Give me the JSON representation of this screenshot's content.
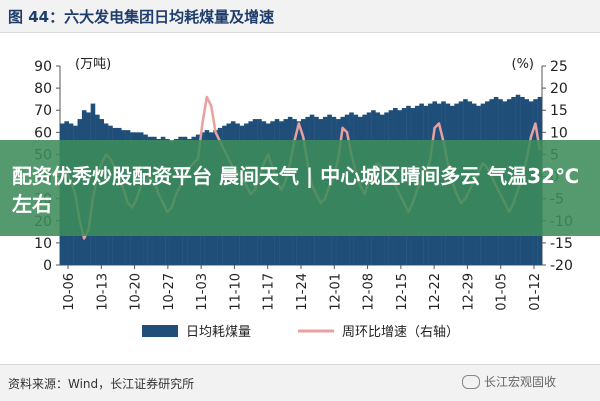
{
  "header": {
    "title": "图 44：六大发电集团日均耗煤量及增速"
  },
  "banner": {
    "text": "配资优秀炒股配资平台 晨间天气 | 中心城区晴间多云 气温32℃左右"
  },
  "footer": {
    "source": "资料来源：Wind，长江证券研究所",
    "watermark": "长江宏观固收"
  },
  "colors": {
    "bar": "#1f4e79",
    "line": "#e8a0a0",
    "title": "#1f3d6b"
  },
  "chart_data": {
    "type": "bar+line",
    "left_axis_unit": "(万吨)",
    "right_axis_unit": "(%)",
    "ylim_left": [
      0,
      90
    ],
    "left_ticks": [
      0,
      10,
      20,
      30,
      40,
      50,
      60,
      70,
      80,
      90
    ],
    "ylim_right": [
      -20,
      25
    ],
    "right_ticks": [
      -20,
      -15,
      -10,
      -5,
      0,
      5,
      10,
      15,
      20,
      25
    ],
    "x_tick_labels": [
      "10-06",
      "10-13",
      "10-20",
      "10-27",
      "11-03",
      "11-10",
      "11-17",
      "11-24",
      "12-01",
      "12-08",
      "12-15",
      "12-22",
      "12-29",
      "01-05",
      "01-12"
    ],
    "series": [
      {
        "name": "日均耗煤量",
        "type": "bar",
        "values": [
          64,
          65,
          64,
          63,
          66,
          70,
          69,
          73,
          68,
          66,
          64,
          63,
          62,
          62,
          61,
          61,
          60,
          60,
          60,
          59,
          58,
          58,
          57,
          58,
          57,
          56,
          57,
          58,
          58,
          57,
          58,
          59,
          60,
          61,
          60,
          61,
          62,
          63,
          64,
          65,
          64,
          63,
          64,
          65,
          66,
          66,
          65,
          64,
          65,
          66,
          65,
          66,
          67,
          66,
          65,
          66,
          67,
          68,
          67,
          66,
          67,
          68,
          67,
          66,
          67,
          68,
          69,
          68,
          67,
          68,
          69,
          70,
          69,
          68,
          69,
          70,
          71,
          70,
          71,
          72,
          71,
          72,
          73,
          72,
          73,
          74,
          73,
          74,
          73,
          72,
          73,
          74,
          75,
          74,
          73,
          72,
          73,
          74,
          75,
          76,
          75,
          74,
          75,
          76,
          77,
          76,
          75,
          74,
          75,
          76
        ]
      },
      {
        "name": "周环比增速（右轴）",
        "type": "line",
        "axis": "right",
        "values": [
          2,
          1,
          -1,
          -4,
          -10,
          -14,
          -12,
          -5,
          0,
          3,
          5,
          4,
          2,
          0,
          -3,
          -6,
          -7,
          -5,
          -2,
          -1,
          0,
          -1,
          -4,
          -6,
          -8,
          -7,
          -4,
          -2,
          0,
          2,
          3,
          4,
          12,
          18,
          16,
          10,
          8,
          6,
          4,
          2,
          1,
          0,
          -2,
          -4,
          -3,
          0,
          3,
          5,
          2,
          -1,
          -3,
          -1,
          3,
          8,
          12,
          9,
          3,
          -2,
          -4,
          -6,
          -5,
          -2,
          0,
          4,
          11,
          10,
          5,
          1,
          -2,
          -4,
          -1,
          2,
          3,
          2,
          1,
          0,
          -2,
          -4,
          -6,
          -8,
          -6,
          -3,
          -1,
          1,
          4,
          11,
          12,
          8,
          3,
          -1,
          -4,
          -6,
          -5,
          -3,
          -1,
          1,
          3,
          2,
          0,
          -2,
          -4,
          -6,
          -8,
          -6,
          -3,
          0,
          4,
          9,
          12,
          6
        ]
      }
    ]
  }
}
